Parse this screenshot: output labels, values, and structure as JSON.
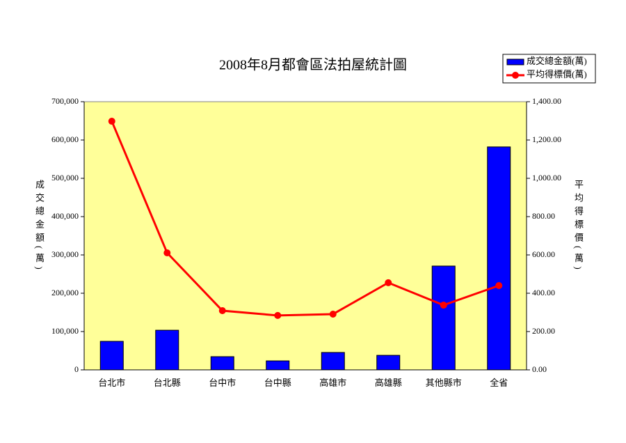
{
  "chart_data": {
    "type": "bar",
    "title": "2008年8月都會區法拍屋統計圖",
    "y_label": "成交總金額(萬)",
    "y2_label": "平均得標價(萬)",
    "categories": [
      "台北市",
      "台北縣",
      "台中市",
      "台中縣",
      "高雄市",
      "高雄縣",
      "其他縣市",
      "全省"
    ],
    "series": [
      {
        "name": "成交總金額(萬)",
        "type": "bar",
        "color": "#0000ff",
        "values": [
          74500,
          103500,
          34500,
          23500,
          45500,
          38000,
          271000,
          582000
        ]
      },
      {
        "name": "平均得標價(萬)",
        "type": "line",
        "axis": "y2",
        "color": "#ff0000",
        "values": [
          1298,
          611,
          309,
          284,
          291,
          455,
          338,
          440
        ]
      }
    ],
    "ylim": [
      0,
      700000
    ],
    "yticks": [
      0,
      {
        "value": 100000,
        "label": "100,000"
      },
      {
        "value": 200000,
        "label": "200,000"
      },
      {
        "value": 300000,
        "label": "300,000"
      },
      {
        "value": 400000,
        "label": "400,000"
      },
      {
        "value": 500000,
        "label": "500,000"
      },
      {
        "value": 600000,
        "label": "600,000"
      },
      {
        "value": 700000,
        "label": "700,000"
      }
    ],
    "y2lim": [
      0,
      1400
    ],
    "y2ticks": [
      {
        "value": 0,
        "label": "0.00"
      },
      {
        "value": 200,
        "label": "200.00"
      },
      {
        "value": 400,
        "label": "400.00"
      },
      {
        "value": 600,
        "label": "600.00"
      },
      {
        "value": 800,
        "label": "800.00"
      },
      {
        "value": 1000,
        "label": "1,000.00"
      },
      {
        "value": 1200,
        "label": "1,200.00"
      },
      {
        "value": 1400,
        "label": "1,400.00"
      }
    ],
    "plot_color": "#ffff99",
    "legend": "top-right"
  }
}
